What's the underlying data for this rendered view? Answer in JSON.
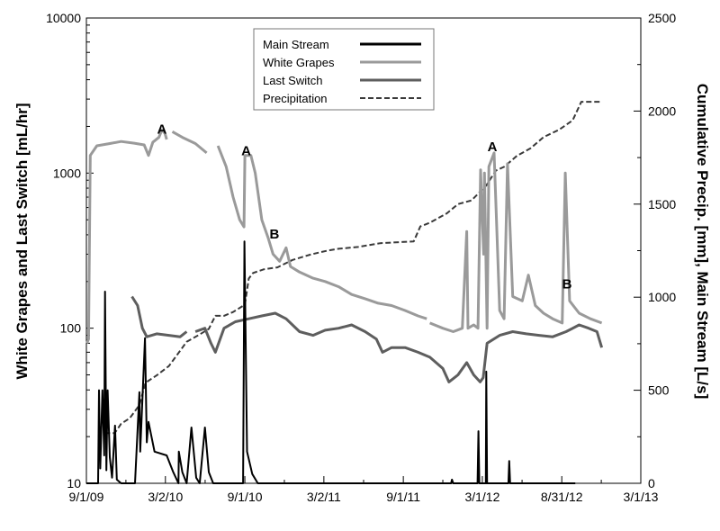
{
  "chart_data": {
    "type": "line",
    "x_axis": {
      "ticks": [
        "9/1/09",
        "3/2/10",
        "9/1/10",
        "3/2/11",
        "9/1/11",
        "3/1/12",
        "8/31/12",
        "3/1/13"
      ],
      "range": [
        "2009-09-01",
        "2013-03-01"
      ]
    },
    "y_left": {
      "label": "White Grapes and Last Switch [mL/hr]",
      "scale": "log",
      "range": [
        10,
        10000
      ],
      "ticks": [
        "10",
        "100",
        "1000",
        "10000"
      ]
    },
    "y_right": {
      "label": "Cumulative Precip. [mm], Main Stream [L/s]",
      "scale": "linear",
      "range": [
        0,
        2500
      ],
      "ticks": [
        "0",
        "500",
        "1000",
        "1500",
        "2000",
        "2500"
      ]
    },
    "legend": {
      "position": "top-center",
      "entries": [
        {
          "name": "Main Stream",
          "color": "#000000",
          "style": "solid"
        },
        {
          "name": "White Grapes",
          "color": "#9a9a9a",
          "style": "solid"
        },
        {
          "name": "Last Switch",
          "color": "#5e5e5e",
          "style": "solid"
        },
        {
          "name": "Precipitation",
          "color": "#3a3a3a",
          "style": "dashed"
        }
      ]
    },
    "annotations": [
      {
        "text": "A",
        "x": "2010-02-22",
        "y": 1800,
        "axis": "left"
      },
      {
        "text": "A",
        "x": "2010-09-04",
        "y": 1300,
        "axis": "left"
      },
      {
        "text": "B",
        "x": "2010-11-08",
        "y": 380,
        "axis": "left"
      },
      {
        "text": "A",
        "x": "2012-03-24",
        "y": 1380,
        "axis": "left"
      },
      {
        "text": "B",
        "x": "2012-09-12",
        "y": 180,
        "axis": "left"
      }
    ],
    "series": [
      {
        "name": "White Grapes",
        "axis": "left",
        "color": "#9a9a9a",
        "style": "solid",
        "segments": [
          [
            [
              "2009-09-02",
              80
            ],
            [
              "2009-09-06",
              85
            ],
            [
              "2009-09-10",
              1300
            ],
            [
              "2009-09-25",
              1500
            ],
            [
              "2009-10-25",
              1550
            ],
            [
              "2009-11-20",
              1600
            ],
            [
              "2009-12-20",
              1560
            ],
            [
              "2010-01-12",
              1520
            ],
            [
              "2010-01-22",
              1300
            ],
            [
              "2010-02-01",
              1580
            ],
            [
              "2010-02-15",
              1700
            ],
            [
              "2010-02-22",
              1900
            ],
            [
              "2010-03-01",
              1800
            ],
            [
              "2010-03-05",
              1650
            ]
          ],
          [
            [
              "2010-03-18",
              1850
            ],
            [
              "2010-04-10",
              1700
            ],
            [
              "2010-05-10",
              1550
            ],
            [
              "2010-06-05",
              1350
            ]
          ],
          [
            [
              "2010-07-01",
              1500
            ],
            [
              "2010-07-20",
              1100
            ],
            [
              "2010-08-05",
              700
            ],
            [
              "2010-08-20",
              500
            ],
            [
              "2010-08-30",
              450
            ],
            [
              "2010-09-01",
              1300
            ],
            [
              "2010-09-15",
              1300
            ],
            [
              "2010-09-25",
              1000
            ],
            [
              "2010-10-10",
              500
            ],
            [
              "2010-10-25",
              380
            ],
            [
              "2010-11-05",
              300
            ],
            [
              "2010-11-20",
              270
            ],
            [
              "2010-12-05",
              330
            ],
            [
              "2010-12-15",
              250
            ],
            [
              "2011-01-05",
              230
            ],
            [
              "2011-02-05",
              210
            ],
            [
              "2011-03-05",
              200
            ],
            [
              "2011-04-05",
              185
            ],
            [
              "2011-05-05",
              165
            ],
            [
              "2011-06-05",
              155
            ],
            [
              "2011-07-05",
              145
            ],
            [
              "2011-08-05",
              140
            ],
            [
              "2011-09-05",
              130
            ],
            [
              "2011-10-05",
              120
            ],
            [
              "2011-10-25",
              115
            ]
          ],
          [
            [
              "2011-11-01",
              108
            ],
            [
              "2011-12-01",
              100
            ],
            [
              "2011-12-25",
              95
            ],
            [
              "2012-01-15",
              100
            ],
            [
              "2012-01-25",
              420
            ],
            [
              "2012-01-28",
              100
            ],
            [
              "2012-02-10",
              105
            ],
            [
              "2012-02-20",
              100
            ],
            [
              "2012-02-26",
              1050
            ],
            [
              "2012-03-04",
              300
            ],
            [
              "2012-03-06",
              1000
            ],
            [
              "2012-03-12",
              100
            ],
            [
              "2012-03-16",
              1100
            ],
            [
              "2012-03-28",
              1350
            ],
            [
              "2012-04-10",
              130
            ],
            [
              "2012-04-20",
              115
            ],
            [
              "2012-04-28",
              1150
            ],
            [
              "2012-05-10",
              160
            ],
            [
              "2012-06-01",
              150
            ],
            [
              "2012-06-15",
              220
            ],
            [
              "2012-07-01",
              140
            ],
            [
              "2012-07-20",
              125
            ],
            [
              "2012-08-10",
              115
            ],
            [
              "2012-09-01",
              108
            ],
            [
              "2012-09-08",
              1000
            ],
            [
              "2012-09-18",
              150
            ],
            [
              "2012-10-10",
              125
            ],
            [
              "2012-11-05",
              115
            ],
            [
              "2012-12-01",
              108
            ]
          ]
        ]
      },
      {
        "name": "Last Switch",
        "axis": "left",
        "color": "#5e5e5e",
        "style": "solid",
        "segments": [
          [
            [
              "2009-12-15",
              160
            ],
            [
              "2009-12-28",
              140
            ],
            [
              "2010-01-08",
              100
            ],
            [
              "2010-01-18",
              88
            ],
            [
              "2010-02-10",
              92
            ],
            [
              "2010-03-10",
              90
            ],
            [
              "2010-04-05",
              88
            ],
            [
              "2010-04-20",
              95
            ]
          ],
          [
            [
              "2010-05-10",
              95
            ],
            [
              "2010-06-01",
              100
            ],
            [
              "2010-06-15",
              80
            ],
            [
              "2010-06-25",
              70
            ],
            [
              "2010-07-15",
              100
            ],
            [
              "2010-08-10",
              110
            ],
            [
              "2010-09-10",
              115
            ],
            [
              "2010-10-10",
              120
            ],
            [
              "2010-11-10",
              125
            ],
            [
              "2010-12-05",
              115
            ],
            [
              "2011-01-05",
              95
            ],
            [
              "2011-02-05",
              90
            ],
            [
              "2011-03-05",
              97
            ],
            [
              "2011-04-05",
              100
            ],
            [
              "2011-05-05",
              105
            ],
            [
              "2011-06-05",
              95
            ],
            [
              "2011-07-01",
              85
            ],
            [
              "2011-07-15",
              70
            ],
            [
              "2011-08-05",
              75
            ],
            [
              "2011-09-05",
              75
            ],
            [
              "2011-10-05",
              70
            ],
            [
              "2011-11-01",
              65
            ],
            [
              "2011-12-01",
              55
            ],
            [
              "2011-12-15",
              45
            ],
            [
              "2012-01-05",
              50
            ],
            [
              "2012-01-25",
              60
            ],
            [
              "2012-02-10",
              50
            ],
            [
              "2012-02-25",
              45
            ],
            [
              "2012-03-03",
              48
            ],
            [
              "2012-03-12",
              80
            ],
            [
              "2012-04-10",
              90
            ],
            [
              "2012-05-10",
              95
            ],
            [
              "2012-06-10",
              92
            ],
            [
              "2012-07-10",
              90
            ],
            [
              "2012-08-10",
              88
            ],
            [
              "2012-09-10",
              95
            ],
            [
              "2012-10-10",
              105
            ],
            [
              "2012-11-01",
              100
            ],
            [
              "2012-11-20",
              95
            ],
            [
              "2012-12-01",
              75
            ]
          ]
        ]
      },
      {
        "name": "Main Stream",
        "axis": "right",
        "color": "#000000",
        "style": "solid",
        "segments": [
          [
            [
              "2009-09-01",
              0
            ],
            [
              "2009-09-28",
              0
            ],
            [
              "2009-09-30",
              500
            ],
            [
              "2009-10-03",
              80
            ],
            [
              "2009-10-08",
              500
            ],
            [
              "2009-10-12",
              150
            ],
            [
              "2009-10-14",
              1030
            ],
            [
              "2009-10-17",
              70
            ],
            [
              "2009-10-20",
              500
            ],
            [
              "2009-10-25",
              140
            ],
            [
              "2009-10-30",
              30
            ],
            [
              "2009-11-06",
              310
            ],
            [
              "2009-11-10",
              20
            ],
            [
              "2009-11-20",
              0
            ],
            [
              "2009-12-22",
              0
            ],
            [
              "2010-01-01",
              490
            ],
            [
              "2010-01-03",
              170
            ],
            [
              "2010-01-14",
              780
            ],
            [
              "2010-01-18",
              220
            ],
            [
              "2010-01-22",
              330
            ],
            [
              "2010-02-05",
              170
            ],
            [
              "2010-03-05",
              150
            ],
            [
              "2010-03-20",
              60
            ],
            [
              "2010-04-01",
              0
            ],
            [
              "2010-04-02",
              170
            ],
            [
              "2010-04-10",
              60
            ],
            [
              "2010-04-20",
              0
            ],
            [
              "2010-05-01",
              300
            ],
            [
              "2010-05-12",
              30
            ],
            [
              "2010-05-20",
              0
            ],
            [
              "2010-06-01",
              300
            ],
            [
              "2010-06-10",
              60
            ],
            [
              "2010-06-20",
              0
            ],
            [
              "2010-08-28",
              0
            ],
            [
              "2010-08-31",
              1300
            ],
            [
              "2010-09-06",
              170
            ],
            [
              "2010-09-18",
              50
            ],
            [
              "2010-10-01",
              0
            ],
            [
              "2011-12-20",
              0
            ],
            [
              "2011-12-22",
              20
            ],
            [
              "2011-12-25",
              0
            ],
            [
              "2012-02-19",
              0
            ],
            [
              "2012-02-21",
              280
            ],
            [
              "2012-02-23",
              0
            ],
            [
              "2012-03-09",
              0
            ],
            [
              "2012-03-10",
              600
            ],
            [
              "2012-03-12",
              0
            ],
            [
              "2012-04-30",
              0
            ],
            [
              "2012-05-02",
              120
            ],
            [
              "2012-05-04",
              0
            ],
            [
              "2012-10-01",
              0
            ]
          ]
        ]
      },
      {
        "name": "Precipitation",
        "axis": "right",
        "color": "#3a3a3a",
        "style": "dashed",
        "segments": [
          [
            [
              "2009-10-13",
              270
            ],
            [
              "2009-11-05",
              270
            ],
            [
              "2009-11-20",
              320
            ],
            [
              "2009-12-10",
              350
            ],
            [
              "2010-01-01",
              420
            ],
            [
              "2010-01-15",
              540
            ],
            [
              "2010-02-10",
              580
            ],
            [
              "2010-03-10",
              630
            ],
            [
              "2010-04-20",
              760
            ],
            [
              "2010-05-20",
              800
            ],
            [
              "2010-06-10",
              830
            ],
            [
              "2010-06-25",
              900
            ],
            [
              "2010-07-15",
              900
            ],
            [
              "2010-08-05",
              920
            ],
            [
              "2010-09-01",
              960
            ],
            [
              "2010-09-10",
              1100
            ],
            [
              "2010-09-20",
              1130
            ],
            [
              "2010-10-15",
              1150
            ],
            [
              "2010-11-15",
              1160
            ],
            [
              "2010-12-20",
              1200
            ],
            [
              "2011-02-01",
              1230
            ],
            [
              "2011-03-10",
              1250
            ],
            [
              "2011-04-05",
              1260
            ],
            [
              "2011-05-20",
              1270
            ],
            [
              "2011-07-10",
              1290
            ],
            [
              "2011-09-25",
              1300
            ],
            [
              "2011-10-10",
              1380
            ],
            [
              "2011-11-01",
              1400
            ],
            [
              "2011-12-10",
              1450
            ],
            [
              "2012-01-05",
              1500
            ],
            [
              "2012-02-05",
              1520
            ],
            [
              "2012-03-10",
              1600
            ],
            [
              "2012-04-01",
              1680
            ],
            [
              "2012-04-20",
              1700
            ],
            [
              "2012-05-20",
              1760
            ],
            [
              "2012-06-20",
              1800
            ],
            [
              "2012-07-20",
              1860
            ],
            [
              "2012-08-25",
              1900
            ],
            [
              "2012-09-25",
              1950
            ],
            [
              "2012-10-15",
              2050
            ],
            [
              "2012-12-01",
              2050
            ]
          ]
        ]
      }
    ]
  }
}
